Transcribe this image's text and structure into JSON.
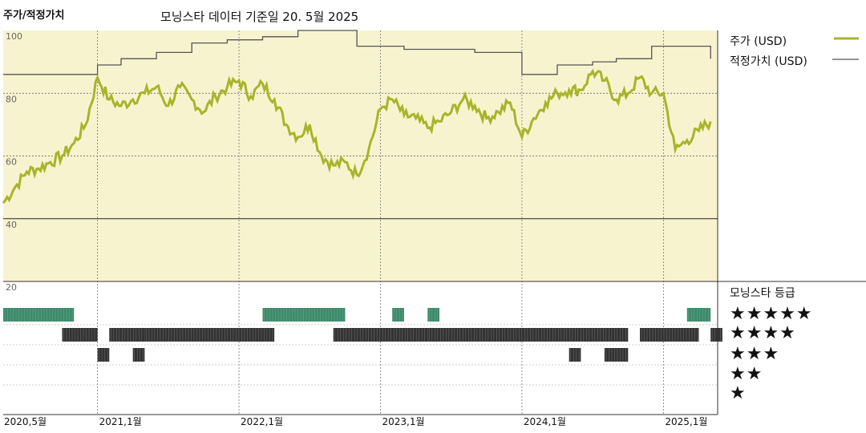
{
  "header": {
    "title": "주가/적정가치",
    "subtitle": "모닝스타 데이터 기준일 20. 5월 2025"
  },
  "legend": {
    "price_label": "주가 (USD)",
    "fair_label": "적정가치 (USD)",
    "rating_title": "모닝스타 등급"
  },
  "colors": {
    "price": "#a8b42a",
    "fair": "#555555",
    "plot_bg": "#f8f3cf",
    "five_star": "#3c8a6a",
    "bars": "#333333"
  },
  "chart_data": {
    "type": "line",
    "title": "주가/적정가치",
    "ylim": [
      20,
      100
    ],
    "y_ticks": [
      "100",
      "80",
      "60",
      "40",
      "20"
    ],
    "x_ticks": [
      "2020,5월",
      "2021,1월",
      "2022,1월",
      "2023,1월",
      "2024,1월",
      "2025,1월"
    ],
    "grid": true,
    "legend_position": "right",
    "series": [
      {
        "name": "주가 (USD)",
        "points": [
          [
            "2020-05",
            45
          ],
          [
            "2020-06",
            50
          ],
          [
            "2020-07",
            55
          ],
          [
            "2020-08",
            56
          ],
          [
            "2020-09",
            58
          ],
          [
            "2020-10",
            60
          ],
          [
            "2020-11",
            64
          ],
          [
            "2020-12",
            70
          ],
          [
            "2021-01",
            85
          ],
          [
            "2021-02",
            78
          ],
          [
            "2021-03",
            76
          ],
          [
            "2021-04",
            78
          ],
          [
            "2021-05",
            80
          ],
          [
            "2021-06",
            82
          ],
          [
            "2021-07",
            76
          ],
          [
            "2021-08",
            82
          ],
          [
            "2021-09",
            78
          ],
          [
            "2021-10",
            74
          ],
          [
            "2021-11",
            79
          ],
          [
            "2021-12",
            82
          ],
          [
            "2022-01",
            84
          ],
          [
            "2022-02",
            79
          ],
          [
            "2022-03",
            83
          ],
          [
            "2022-04",
            78
          ],
          [
            "2022-05",
            70
          ],
          [
            "2022-06",
            66
          ],
          [
            "2022-07",
            70
          ],
          [
            "2022-08",
            60
          ],
          [
            "2022-09",
            57
          ],
          [
            "2022-10",
            58
          ],
          [
            "2022-11",
            54
          ],
          [
            "2022-12",
            62
          ],
          [
            "2023-01",
            75
          ],
          [
            "2023-02",
            78
          ],
          [
            "2023-03",
            73
          ],
          [
            "2023-04",
            72
          ],
          [
            "2023-05",
            69
          ],
          [
            "2023-06",
            71
          ],
          [
            "2023-07",
            74
          ],
          [
            "2023-08",
            78
          ],
          [
            "2023-09",
            76
          ],
          [
            "2023-10",
            72
          ],
          [
            "2023-11",
            74
          ],
          [
            "2023-12",
            77
          ],
          [
            "2024-01",
            66
          ],
          [
            "2024-02",
            72
          ],
          [
            "2024-03",
            77
          ],
          [
            "2024-04",
            80
          ],
          [
            "2024-05",
            81
          ],
          [
            "2024-06",
            81
          ],
          [
            "2024-07",
            87
          ],
          [
            "2024-08",
            84
          ],
          [
            "2024-09",
            78
          ],
          [
            "2024-10",
            80
          ],
          [
            "2024-11",
            85
          ],
          [
            "2024-12",
            80
          ],
          [
            "2025-01",
            80
          ],
          [
            "2025-02",
            62
          ],
          [
            "2025-03",
            65
          ],
          [
            "2025-04",
            68
          ],
          [
            "2025-05",
            71
          ]
        ]
      },
      {
        "name": "적정가치 (USD)",
        "points": [
          [
            "2020-05",
            86
          ],
          [
            "2020-12",
            86
          ],
          [
            "2021-01",
            89
          ],
          [
            "2021-03",
            91
          ],
          [
            "2021-06",
            93
          ],
          [
            "2021-09",
            96
          ],
          [
            "2021-12",
            97
          ],
          [
            "2022-03",
            98
          ],
          [
            "2022-06",
            101
          ],
          [
            "2022-10",
            101
          ],
          [
            "2022-11",
            95
          ],
          [
            "2023-03",
            94
          ],
          [
            "2023-09",
            93
          ],
          [
            "2024-01",
            86
          ],
          [
            "2024-04",
            89
          ],
          [
            "2024-07",
            90
          ],
          [
            "2024-09",
            91
          ],
          [
            "2024-12",
            95
          ],
          [
            "2025-04",
            95
          ],
          [
            "2025-05",
            91
          ]
        ]
      }
    ],
    "star_rating": {
      "title": "모닝스타 등급",
      "levels": [
        {
          "stars": "★★★★★",
          "periods": [
            [
              "2020-05",
              "2020-10"
            ],
            [
              "2022-03",
              "2022-09"
            ],
            [
              "2023-02",
              "2023-02"
            ],
            [
              "2023-05",
              "2023-05"
            ],
            [
              "2025-03",
              "2025-04"
            ]
          ]
        },
        {
          "stars": "★★★★",
          "periods": [
            [
              "2020-10",
              "2020-12"
            ],
            [
              "2021-02",
              "2021-04"
            ],
            [
              "2021-05",
              "2022-03"
            ],
            [
              "2022-09",
              "2023-04"
            ],
            [
              "2023-05",
              "2024-09"
            ],
            [
              "2024-11",
              "2025-03"
            ],
            [
              "2025-05",
              "2025-05"
            ]
          ]
        },
        {
          "stars": "★★★",
          "periods": [
            [
              "2021-01",
              "2021-01"
            ],
            [
              "2021-04",
              "2021-04"
            ],
            [
              "2024-05",
              "2024-05"
            ],
            [
              "2024-08",
              "2024-09"
            ]
          ]
        },
        {
          "stars": "★★",
          "periods": []
        },
        {
          "stars": "★",
          "periods": []
        }
      ]
    }
  }
}
